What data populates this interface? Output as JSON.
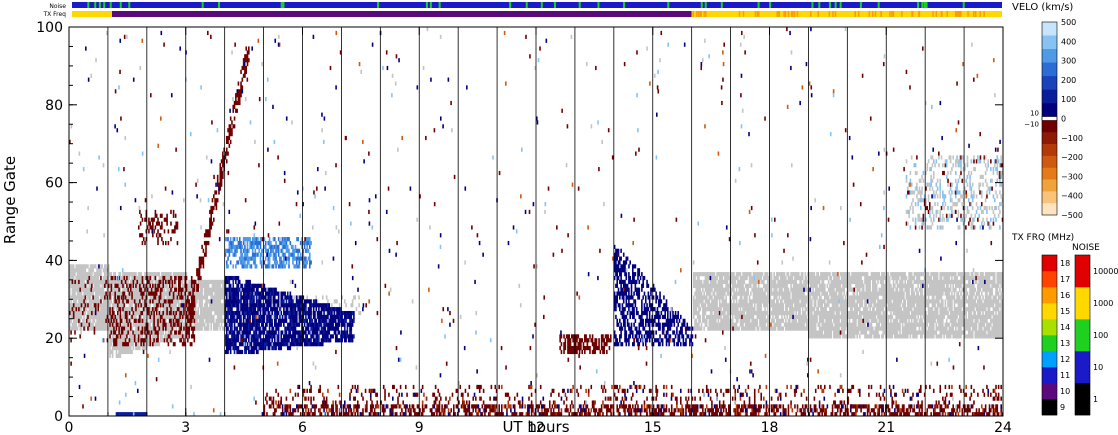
{
  "chart_data": {
    "type": "heatmap",
    "title": "",
    "xlabel": "UT hours",
    "ylabel": "Range Gate",
    "xlim": [
      0,
      24
    ],
    "ylim": [
      0,
      100
    ],
    "x_ticks": [
      "0",
      "3",
      "6",
      "9",
      "12",
      "15",
      "18",
      "21",
      "24"
    ],
    "y_ticks": [
      "0",
      "20",
      "40",
      "60",
      "80",
      "100"
    ],
    "grid": "vertical lines every hour",
    "header_rows": {
      "noise_label": "Noise",
      "txfreq_label": "TX Freq"
    },
    "velocity_scale": {
      "label": "VELO (km/s)",
      "min": -500,
      "max": 500,
      "ticks": [
        "500",
        "400",
        "300",
        "200",
        "100",
        "0",
        "−100",
        "−200",
        "−300",
        "−400",
        "−500"
      ],
      "zero_band_labels": [
        "10",
        "−10"
      ],
      "colors": [
        "#fde3c0",
        "#f9c37a",
        "#f0a23b",
        "#e57b18",
        "#cd5a0e",
        "#b33a08",
        "#8e1a05",
        "#6e0000",
        "#00007f",
        "#0a1e9c",
        "#1a43bb",
        "#2b6dd6",
        "#4f9ae6",
        "#86c2f2",
        "#c6e5fa"
      ]
    },
    "txfreq_scale": {
      "label": "TX FRQ (MHz)",
      "ticks": [
        "9",
        "10",
        "11",
        "12",
        "13",
        "14",
        "15",
        "16",
        "17",
        "18"
      ],
      "colors": [
        "#000000",
        "#5a0a7a",
        "#1a1ac8",
        "#00a0ff",
        "#20d020",
        "#a8e000",
        "#ffd800",
        "#ff9a00",
        "#ff4400",
        "#e00000"
      ]
    },
    "noise_scale": {
      "label": "NOISE",
      "ticks": [
        "1",
        "10",
        "100",
        "1000",
        "10000"
      ],
      "colors": [
        "#000000",
        "#1a1ac8",
        "#20d020",
        "#ffd800",
        "#e00000"
      ]
    },
    "ground_scatter_color": "#c4c4c4",
    "regions": [
      {
        "name": "Ground scatter band",
        "x": [
          0,
          24
        ],
        "y": [
          17,
          37
        ]
      },
      {
        "name": "Negative velocity (away) patches 0-3 UT",
        "x": [
          1,
          3
        ],
        "y": [
          18,
          55
        ]
      },
      {
        "name": "Positive velocity (toward) band 4-7 UT",
        "x": [
          4,
          7
        ],
        "y": [
          15,
          35
        ]
      },
      {
        "name": "Positive velocity patch 14-16 UT",
        "x": [
          14,
          16
        ],
        "y": [
          18,
          45
        ]
      },
      {
        "name": "Near-range mixed echoes",
        "x": [
          5,
          24
        ],
        "y": [
          0,
          8
        ]
      }
    ]
  }
}
